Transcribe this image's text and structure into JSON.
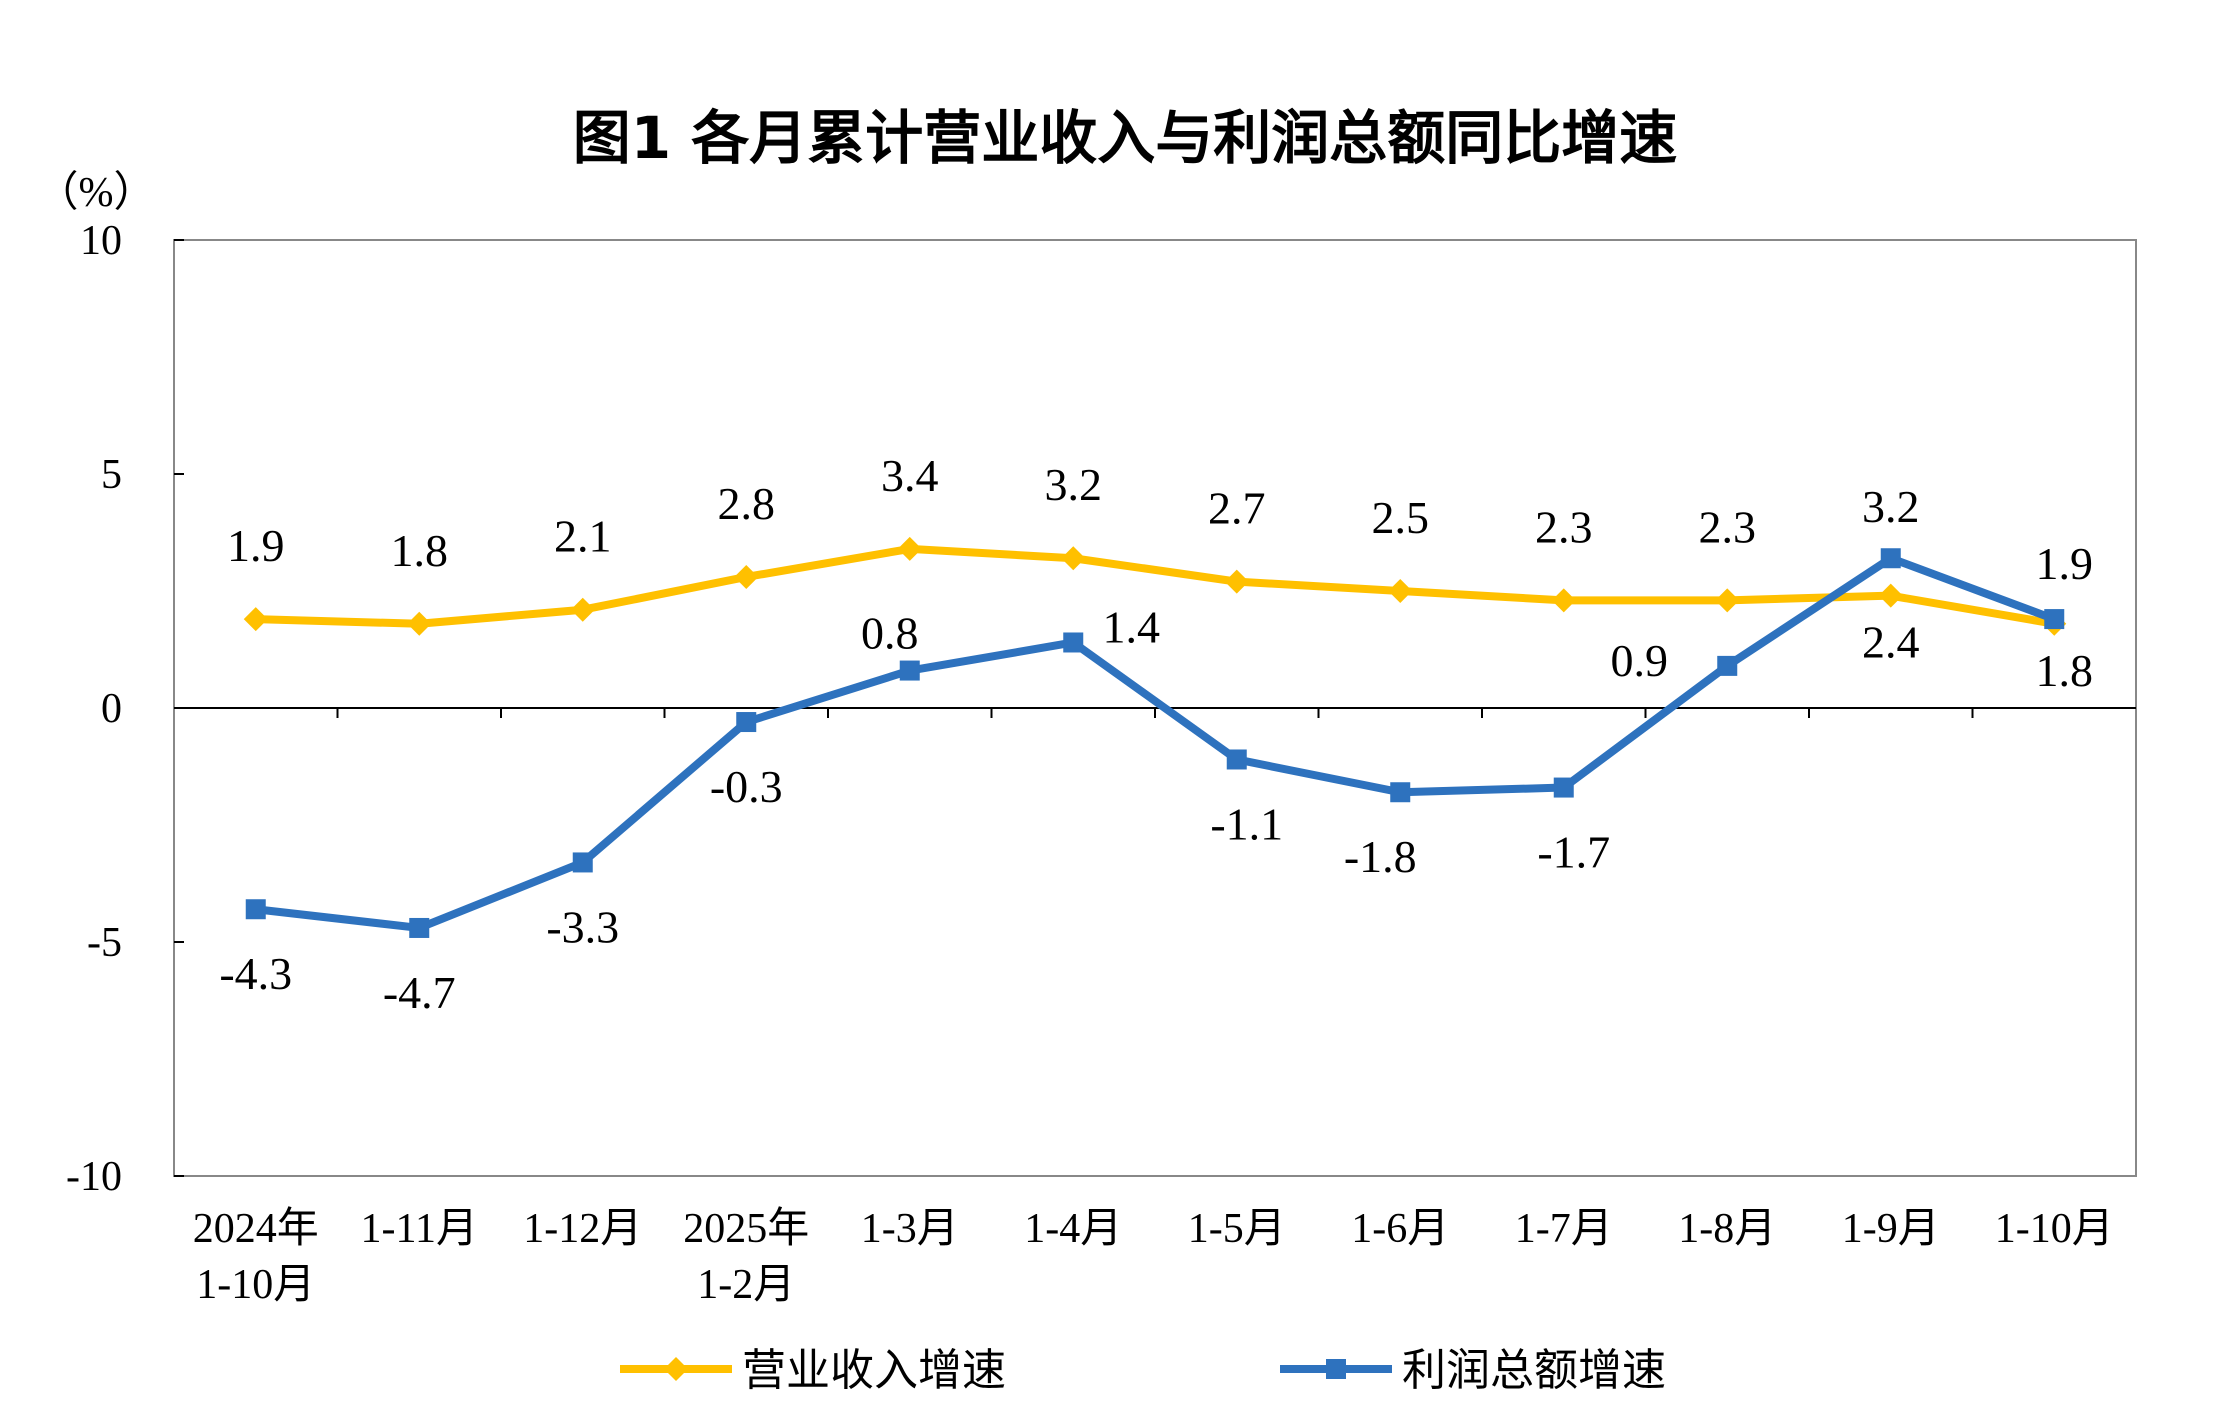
{
  "chart_data": {
    "type": "line",
    "title": "图1  各月累计营业收入与利润总额同比增速",
    "ylabel": "（%）",
    "ylim": [
      -10,
      10
    ],
    "yticks": [
      "10",
      "5",
      "0",
      "-5",
      "-10"
    ],
    "categories": [
      [
        "2024年",
        "1-10月"
      ],
      [
        "1-11月"
      ],
      [
        "1-12月"
      ],
      [
        "2025年",
        "1-2月"
      ],
      [
        "1-3月"
      ],
      [
        "1-4月"
      ],
      [
        "1-5月"
      ],
      [
        "1-6月"
      ],
      [
        "1-7月"
      ],
      [
        "1-8月"
      ],
      [
        "1-9月"
      ],
      [
        "1-10月"
      ]
    ],
    "series": [
      {
        "name": "营业收入增速",
        "color": "#FFC000",
        "marker": "diamond",
        "values": [
          1.9,
          1.8,
          2.1,
          2.8,
          3.4,
          3.2,
          2.7,
          2.5,
          2.3,
          2.3,
          2.4,
          1.8
        ]
      },
      {
        "name": "利润总额增速",
        "color": "#2E72BE",
        "marker": "square",
        "values": [
          -4.3,
          -4.7,
          -3.3,
          -0.3,
          0.8,
          1.4,
          -1.1,
          -1.8,
          -1.7,
          0.9,
          3.2,
          1.9
        ]
      }
    ],
    "grid": false,
    "legend": "bottom"
  }
}
